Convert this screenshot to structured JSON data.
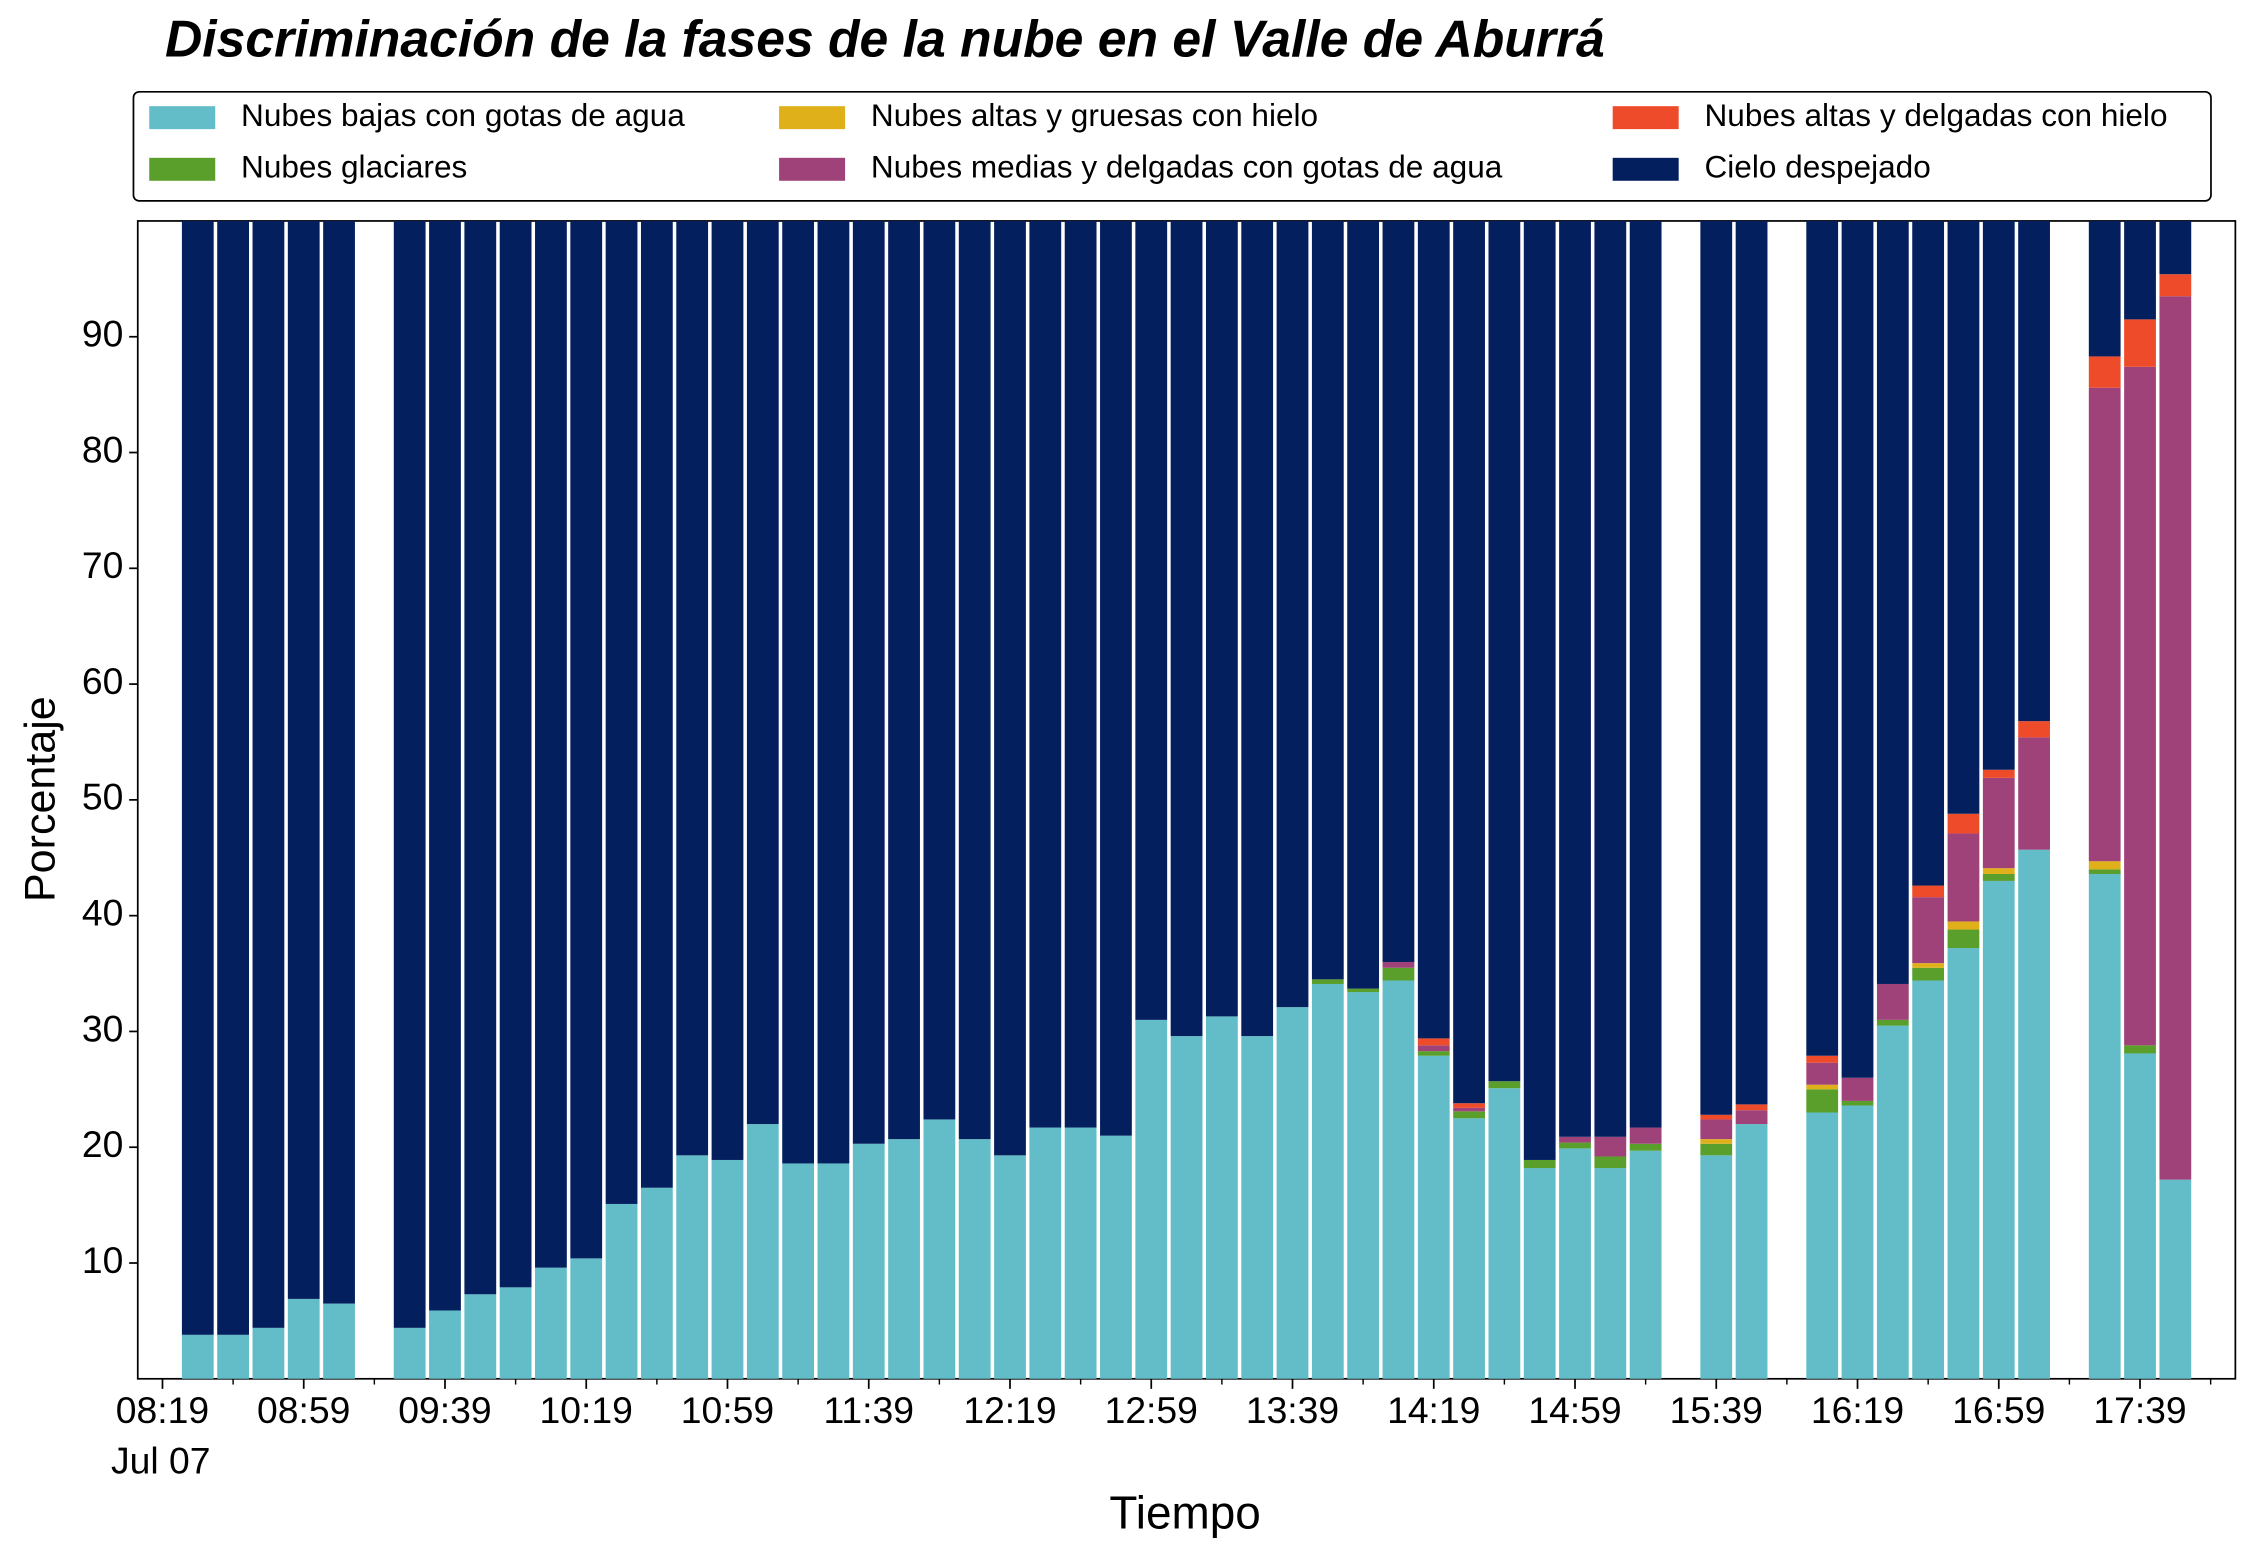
{
  "chart_data": {
    "type": "stacked_bar",
    "title": "Discriminación de la fases de la nube en el Valle de Aburrá",
    "xlabel": "Tiempo",
    "ylabel": "Porcentaje",
    "x_date": "Jul 07",
    "x": [
      "08:29",
      "08:39",
      "08:49",
      "08:59",
      "09:09",
      "09:29",
      "09:39",
      "09:49",
      "09:59",
      "10:09",
      "10:19",
      "10:29",
      "10:39",
      "10:49",
      "10:59",
      "11:09",
      "11:19",
      "11:29",
      "11:39",
      "11:49",
      "11:59",
      "12:09",
      "12:19",
      "12:29",
      "12:39",
      "12:49",
      "12:59",
      "13:09",
      "13:19",
      "13:29",
      "13:39",
      "13:49",
      "13:59",
      "14:09",
      "14:19",
      "14:29",
      "14:39",
      "14:49",
      "14:59",
      "15:09",
      "15:19",
      "15:39",
      "15:49",
      "16:09",
      "16:19",
      "16:29",
      "16:39",
      "16:49",
      "16:59",
      "17:09",
      "17:29",
      "17:39",
      "17:49"
    ],
    "series": [
      {
        "name": "Nubes bajas con gotas de agua",
        "color": "#62bdc8",
        "values": [
          3.8,
          3.8,
          4.4,
          6.9,
          6.5,
          4.4,
          5.9,
          7.3,
          7.9,
          9.6,
          10.4,
          15.1,
          16.5,
          19.3,
          18.9,
          22.0,
          18.6,
          18.6,
          20.3,
          20.7,
          22.4,
          20.7,
          19.3,
          21.7,
          21.7,
          21.0,
          31.0,
          29.6,
          31.3,
          29.6,
          32.1,
          34.1,
          33.4,
          34.4,
          27.9,
          22.5,
          25.1,
          18.2,
          19.9,
          18.2,
          19.7,
          19.3,
          22.0,
          23.0,
          23.6,
          30.5,
          34.4,
          37.2,
          43.0,
          45.7,
          43.6,
          28.1,
          17.2
        ]
      },
      {
        "name": "Nubes glaciares",
        "color": "#5a9e2b",
        "values": [
          0,
          0,
          0,
          0,
          0,
          0,
          0,
          0,
          0,
          0,
          0,
          0,
          0,
          0,
          0,
          0,
          0,
          0,
          0,
          0,
          0,
          0,
          0,
          0,
          0,
          0,
          0,
          0,
          0,
          0,
          0,
          0.4,
          0.3,
          1.1,
          0.4,
          0.6,
          0.6,
          0.7,
          0.5,
          1.0,
          0.6,
          1.0,
          0,
          2.0,
          0.4,
          0.5,
          1.1,
          1.6,
          0.6,
          0,
          0.4,
          0.7,
          0
        ]
      },
      {
        "name": "Nubes altas y gruesas con hielo",
        "color": "#e0b01a",
        "values": [
          0,
          0,
          0,
          0,
          0,
          0,
          0,
          0,
          0,
          0,
          0,
          0,
          0,
          0,
          0,
          0,
          0,
          0,
          0,
          0,
          0,
          0,
          0,
          0,
          0,
          0,
          0,
          0,
          0,
          0,
          0,
          0,
          0,
          0,
          0,
          0,
          0,
          0,
          0,
          0,
          0,
          0.4,
          0,
          0.4,
          0,
          0,
          0.4,
          0.7,
          0.5,
          0,
          0.7,
          0,
          0
        ]
      },
      {
        "name": "Nubes medias y delgadas con gotas de agua",
        "color": "#a0427a",
        "values": [
          0,
          0,
          0,
          0,
          0,
          0,
          0,
          0,
          0,
          0,
          0,
          0,
          0,
          0,
          0,
          0,
          0,
          0,
          0,
          0,
          0,
          0,
          0,
          0,
          0,
          0,
          0,
          0,
          0,
          0,
          0,
          0,
          0,
          0.5,
          0.5,
          0.3,
          0,
          0,
          0.5,
          1.7,
          1.4,
          1.7,
          1.2,
          1.9,
          2.0,
          3.1,
          5.7,
          7.6,
          7.8,
          9.7,
          40.9,
          58.6,
          76.3
        ]
      },
      {
        "name": "Nubes altas y delgadas con hielo",
        "color": "#ee4b2b",
        "values": [
          0,
          0,
          0,
          0,
          0,
          0,
          0,
          0,
          0,
          0,
          0,
          0,
          0,
          0,
          0,
          0,
          0,
          0,
          0,
          0,
          0,
          0,
          0,
          0,
          0,
          0,
          0,
          0,
          0,
          0,
          0,
          0,
          0,
          0,
          0.6,
          0.4,
          0,
          0,
          0,
          0,
          0,
          0.4,
          0.5,
          0.6,
          0,
          0,
          1.0,
          1.7,
          0.7,
          1.4,
          2.7,
          4.1,
          1.9
        ]
      },
      {
        "name": "Cielo despejado",
        "color": "#031f5d",
        "values": [
          96.2,
          96.2,
          95.6,
          93.1,
          93.5,
          95.6,
          94.1,
          92.7,
          92.1,
          90.4,
          89.6,
          84.9,
          83.5,
          80.7,
          81.1,
          78.0,
          81.4,
          81.4,
          79.7,
          79.3,
          77.6,
          79.3,
          80.7,
          78.3,
          78.3,
          79.0,
          69.0,
          70.4,
          68.7,
          70.4,
          67.9,
          65.5,
          66.3,
          64.0,
          70.6,
          76.2,
          74.3,
          81.1,
          79.1,
          79.1,
          78.3,
          77.2,
          76.3,
          72.1,
          74.0,
          65.9,
          57.4,
          51.2,
          47.4,
          43.2,
          11.7,
          8.5,
          4.6
        ]
      }
    ],
    "xlim": [
      "08:12",
      "18:06"
    ],
    "xticks": [
      "08:19",
      "08:59",
      "09:39",
      "10:19",
      "10:59",
      "11:39",
      "12:19",
      "12:59",
      "13:39",
      "14:19",
      "14:59",
      "15:39",
      "16:19",
      "16:59",
      "17:39"
    ],
    "xticks_minor": [
      "08:39",
      "09:19",
      "09:59",
      "10:39",
      "11:19",
      "11:59",
      "12:39",
      "13:19",
      "13:59",
      "14:39",
      "15:19",
      "15:59",
      "16:39",
      "17:19",
      "17:59"
    ],
    "ylim": [
      0,
      100
    ],
    "yticks": [
      10,
      20,
      30,
      40,
      50,
      60,
      70,
      80,
      90
    ],
    "legend": "top",
    "legend_columns": 3,
    "grid": false
  }
}
